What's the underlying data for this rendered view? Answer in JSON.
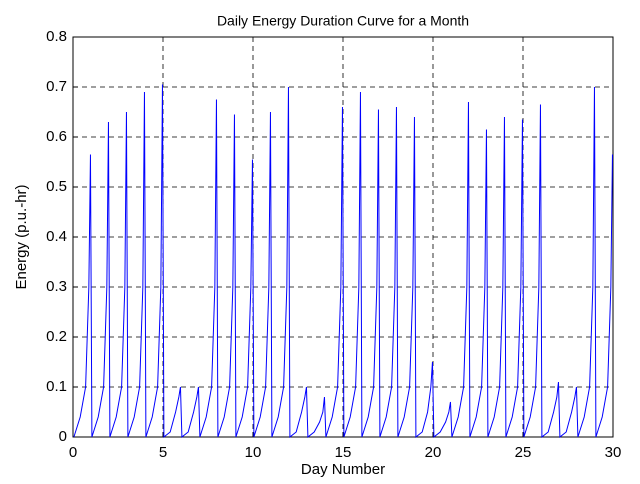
{
  "chart_data": {
    "type": "line",
    "title": "Daily Energy Duration Curve for a Month",
    "x_label": "Day Number",
    "y_label": "Energy (p.u.-hr)",
    "x": [
      0.05,
      0.4,
      0.7,
      0.88,
      0.97,
      1.05,
      1.4,
      1.7,
      1.88,
      1.97,
      2.05,
      2.4,
      2.7,
      2.88,
      2.97,
      3.05,
      3.4,
      3.7,
      3.88,
      3.97,
      4.05,
      4.4,
      4.7,
      4.88,
      4.97,
      5.05,
      5.4,
      5.7,
      5.88,
      5.97,
      6.05,
      6.4,
      6.7,
      6.88,
      6.97,
      7.05,
      7.4,
      7.7,
      7.88,
      7.97,
      8.05,
      8.4,
      8.7,
      8.88,
      8.97,
      9.05,
      9.4,
      9.7,
      9.88,
      9.97,
      10.05,
      10.4,
      10.7,
      10.88,
      10.97,
      11.05,
      11.4,
      11.7,
      11.88,
      11.97,
      12.05,
      12.4,
      12.7,
      12.88,
      12.97,
      13.05,
      13.4,
      13.7,
      13.88,
      13.97,
      14.05,
      14.4,
      14.7,
      14.88,
      14.97,
      15.05,
      15.4,
      15.7,
      15.88,
      15.97,
      16.05,
      16.4,
      16.7,
      16.88,
      16.97,
      17.05,
      17.4,
      17.7,
      17.88,
      17.97,
      18.05,
      18.4,
      18.7,
      18.88,
      18.97,
      19.05,
      19.4,
      19.7,
      19.88,
      19.97,
      20.05,
      20.4,
      20.7,
      20.88,
      20.97,
      21.05,
      21.4,
      21.7,
      21.88,
      21.97,
      22.05,
      22.4,
      22.7,
      22.88,
      22.97,
      23.05,
      23.4,
      23.7,
      23.88,
      23.97,
      24.05,
      24.4,
      24.7,
      24.88,
      24.97,
      25.05,
      25.4,
      25.7,
      25.88,
      25.97,
      26.05,
      26.4,
      26.7,
      26.88,
      26.97,
      27.05,
      27.4,
      27.7,
      27.88,
      27.97,
      28.05,
      28.4,
      28.7,
      28.88,
      28.97,
      29.05,
      29.4,
      29.7,
      29.88,
      29.97
    ],
    "series": [
      {
        "name": "Energy",
        "color": "#0000ff",
        "values": [
          0,
          0.04,
          0.1,
          0.3,
          0.565,
          0,
          0.04,
          0.1,
          0.3,
          0.63,
          0,
          0.04,
          0.1,
          0.3,
          0.65,
          0,
          0.04,
          0.1,
          0.3,
          0.69,
          0,
          0.04,
          0.1,
          0.3,
          0.705,
          0,
          0.01,
          0.05,
          0.08,
          0.1,
          0,
          0.01,
          0.05,
          0.08,
          0.1,
          0,
          0.04,
          0.1,
          0.3,
          0.675,
          0,
          0.04,
          0.1,
          0.3,
          0.645,
          0,
          0.04,
          0.1,
          0.3,
          0.555,
          0,
          0.04,
          0.1,
          0.3,
          0.65,
          0,
          0.04,
          0.1,
          0.3,
          0.7,
          0,
          0.01,
          0.05,
          0.08,
          0.1,
          0,
          0.01,
          0.03,
          0.05,
          0.08,
          0,
          0.04,
          0.1,
          0.3,
          0.66,
          0,
          0.04,
          0.1,
          0.3,
          0.69,
          0,
          0.04,
          0.1,
          0.3,
          0.655,
          0,
          0.04,
          0.1,
          0.3,
          0.66,
          0,
          0.04,
          0.1,
          0.3,
          0.64,
          0,
          0.01,
          0.05,
          0.1,
          0.15,
          0,
          0.01,
          0.03,
          0.05,
          0.07,
          0,
          0.04,
          0.1,
          0.3,
          0.67,
          0,
          0.04,
          0.1,
          0.3,
          0.615,
          0,
          0.04,
          0.1,
          0.3,
          0.64,
          0,
          0.04,
          0.1,
          0.3,
          0.635,
          0,
          0.04,
          0.1,
          0.3,
          0.665,
          0,
          0.01,
          0.05,
          0.08,
          0.11,
          0,
          0.01,
          0.05,
          0.08,
          0.1,
          0,
          0.04,
          0.1,
          0.3,
          0.7,
          0,
          0.04,
          0.1,
          0.3,
          0.565
        ]
      }
    ],
    "xlim": [
      0,
      30
    ],
    "xticks": [
      0,
      5,
      10,
      15,
      20,
      25,
      30
    ],
    "ylim": [
      0,
      0.8
    ],
    "yticks": [
      0,
      0.1,
      0.2,
      0.3,
      0.4,
      0.5,
      0.6,
      0.7,
      0.8
    ],
    "grid": true
  }
}
